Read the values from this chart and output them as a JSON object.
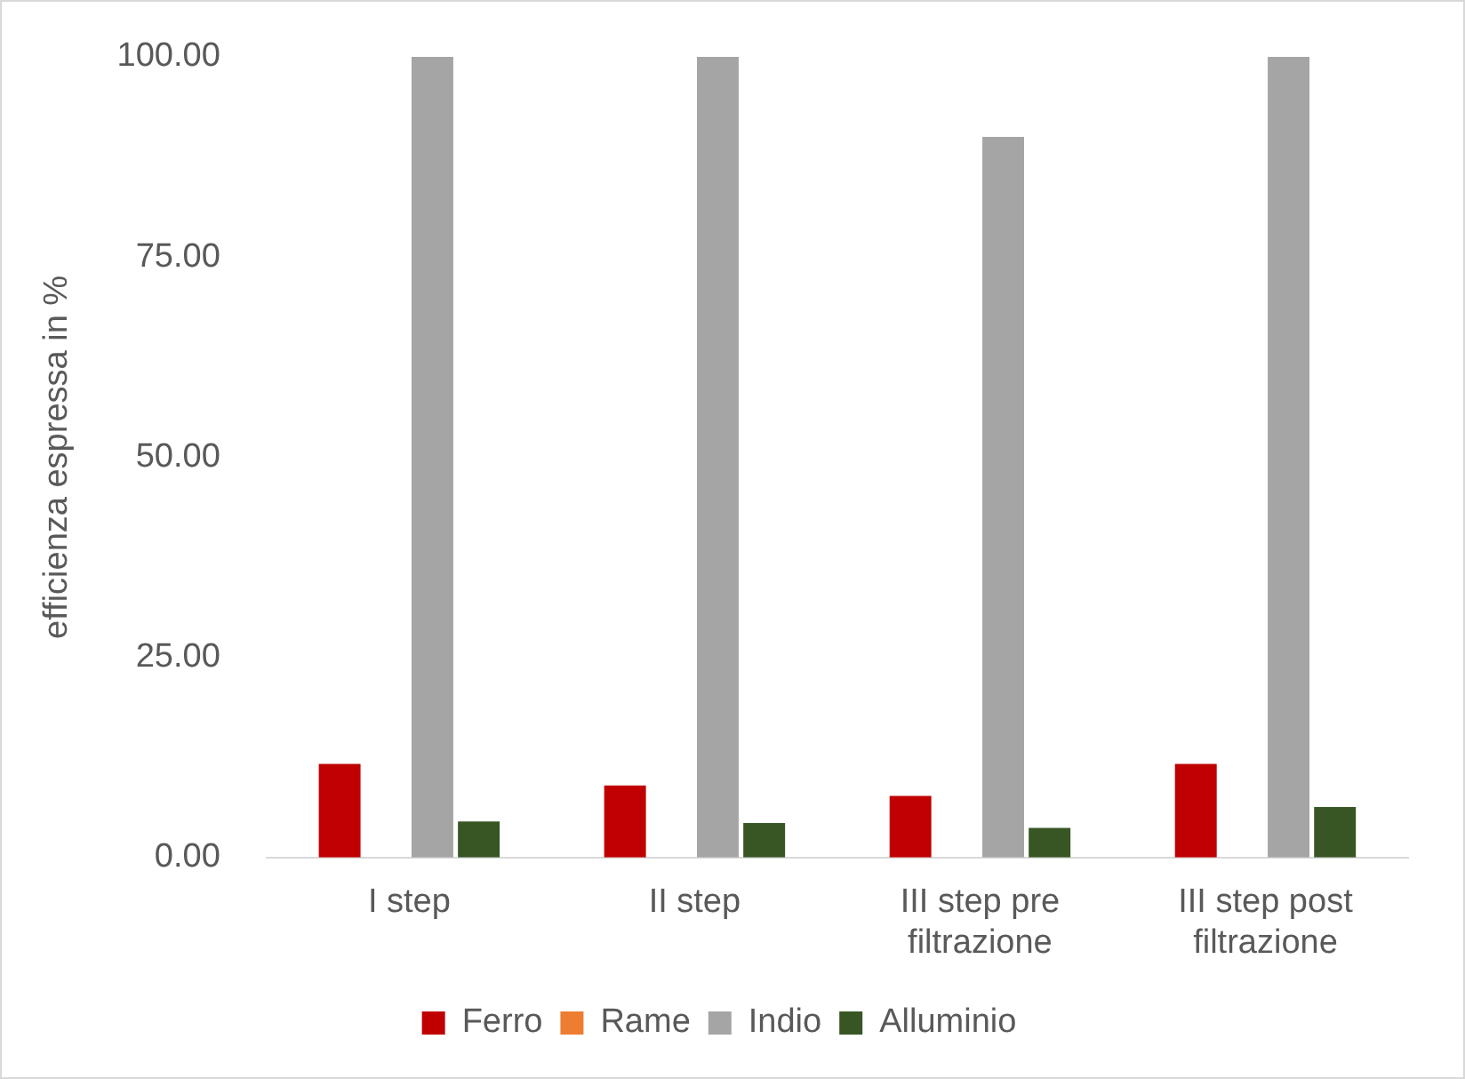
{
  "chart_data": {
    "type": "bar",
    "ylabel": "efficienza espressa in %",
    "categories": [
      "I step",
      "II step",
      "III step pre filtrazione",
      "III step post filtrazione"
    ],
    "series": [
      {
        "name": "Ferro",
        "color": "#c00000",
        "values": [
          11.7,
          9.0,
          7.7,
          11.7
        ]
      },
      {
        "name": "Rame",
        "color": "#ed7d31",
        "values": [
          null,
          null,
          null,
          null
        ]
      },
      {
        "name": "Indio",
        "color": "#a5a5a5",
        "values": [
          100,
          100,
          90,
          100
        ]
      },
      {
        "name": "Alluminio",
        "color": "#375623",
        "values": [
          4.5,
          4.3,
          3.7,
          6.3
        ]
      }
    ],
    "ylim": [
      0,
      100
    ],
    "yticks": [
      {
        "value": 0,
        "label": "0.00"
      },
      {
        "value": 25,
        "label": "25.00"
      },
      {
        "value": 50,
        "label": "50.00"
      },
      {
        "value": 75,
        "label": "75.00"
      },
      {
        "value": 100,
        "label": "100.00"
      }
    ],
    "grid": false,
    "legend": "bottom"
  }
}
